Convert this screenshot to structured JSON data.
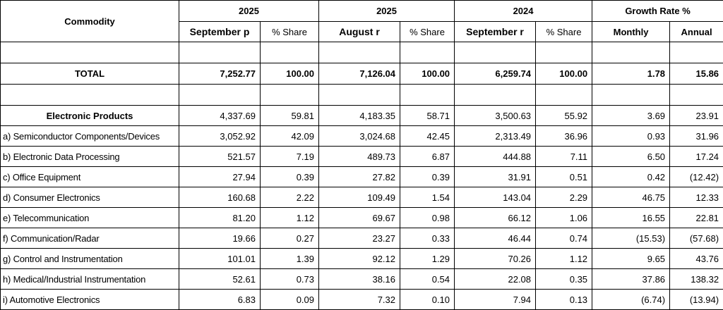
{
  "header": {
    "commodity": "Commodity",
    "groups": [
      "2025",
      "2025",
      "2024",
      "Growth Rate %"
    ],
    "subheaders": [
      "September p",
      "% Share",
      "August r",
      "% Share",
      "September r",
      "% Share",
      "Monthly",
      "Annual"
    ]
  },
  "total": {
    "label": "TOTAL",
    "values": [
      "7,252.77",
      "100.00",
      "7,126.04",
      "100.00",
      "6,259.74",
      "100.00",
      "1.78",
      "15.86"
    ]
  },
  "rows": [
    {
      "label": "Electronic Products",
      "values": [
        "4,337.69",
        "59.81",
        "4,183.35",
        "58.71",
        "3,500.63",
        "55.92",
        "3.69",
        "23.91"
      ]
    },
    {
      "label": "a) Semiconductor Components/Devices",
      "values": [
        "3,052.92",
        "42.09",
        "3,024.68",
        "42.45",
        "2,313.49",
        "36.96",
        "0.93",
        "31.96"
      ]
    },
    {
      "label": "b) Electronic Data Processing",
      "values": [
        "521.57",
        "7.19",
        "489.73",
        "6.87",
        "444.88",
        "7.11",
        "6.50",
        "17.24"
      ]
    },
    {
      "label": "c) Office Equipment",
      "values": [
        "27.94",
        "0.39",
        "27.82",
        "0.39",
        "31.91",
        "0.51",
        "0.42",
        "(12.42)"
      ]
    },
    {
      "label": "d) Consumer Electronics",
      "values": [
        "160.68",
        "2.22",
        "109.49",
        "1.54",
        "143.04",
        "2.29",
        "46.75",
        "12.33"
      ]
    },
    {
      "label": "e) Telecommunication",
      "values": [
        "81.20",
        "1.12",
        "69.67",
        "0.98",
        "66.12",
        "1.06",
        "16.55",
        "22.81"
      ]
    },
    {
      "label": "f) Communication/Radar",
      "values": [
        "19.66",
        "0.27",
        "23.27",
        "0.33",
        "46.44",
        "0.74",
        "(15.53)",
        "(57.68)"
      ]
    },
    {
      "label": "g) Control and Instrumentation",
      "values": [
        "101.01",
        "1.39",
        "92.12",
        "1.29",
        "70.26",
        "1.12",
        "9.65",
        "43.76"
      ]
    },
    {
      "label": "h) Medical/Industrial Instrumentation",
      "values": [
        "52.61",
        "0.73",
        "38.16",
        "0.54",
        "22.08",
        "0.35",
        "37.86",
        "138.32"
      ]
    },
    {
      "label": "i) Automotive Electronics",
      "values": [
        "6.83",
        "0.09",
        "7.32",
        "0.10",
        "7.94",
        "0.13",
        "(6.74)",
        "(13.94)"
      ]
    }
  ]
}
